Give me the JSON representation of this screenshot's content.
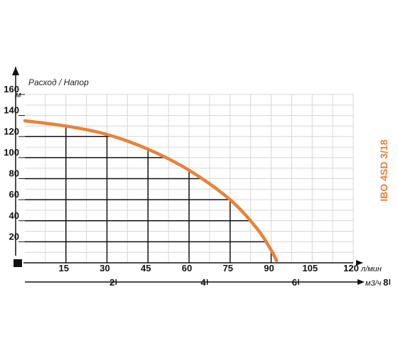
{
  "chart_data": {
    "type": "line",
    "title": "Расход / Напор",
    "model_label": "IBO 4SD 3/18",
    "y_unit": "м",
    "x_unit": "л/мин",
    "x2_unit": "м3/ч",
    "ylim": [
      0,
      160
    ],
    "xlim": [
      0,
      120
    ],
    "y_ticks": [
      20,
      40,
      60,
      80,
      100,
      120,
      140,
      160
    ],
    "y_tick_labels": [
      "20",
      "40",
      "60",
      "80",
      "100",
      "120",
      "140",
      "160"
    ],
    "x_ticks": [
      15,
      30,
      45,
      60,
      75,
      90,
      105,
      120
    ],
    "x_tick_labels": [
      "15",
      "30",
      "45",
      "60",
      "75",
      "90",
      "105",
      "120"
    ],
    "x2_ticks": [
      2,
      4,
      6,
      8
    ],
    "x2_tick_labels": [
      "2",
      "4",
      "6",
      "8"
    ],
    "grid": true,
    "series": [
      {
        "color": "#e8823a",
        "x": [
          0,
          15,
          30,
          45,
          60,
          75,
          85,
          90,
          92
        ],
        "y": [
          135,
          130,
          122,
          108,
          88,
          60,
          32,
          12,
          2
        ]
      }
    ],
    "accent_color": "#e8823a"
  }
}
